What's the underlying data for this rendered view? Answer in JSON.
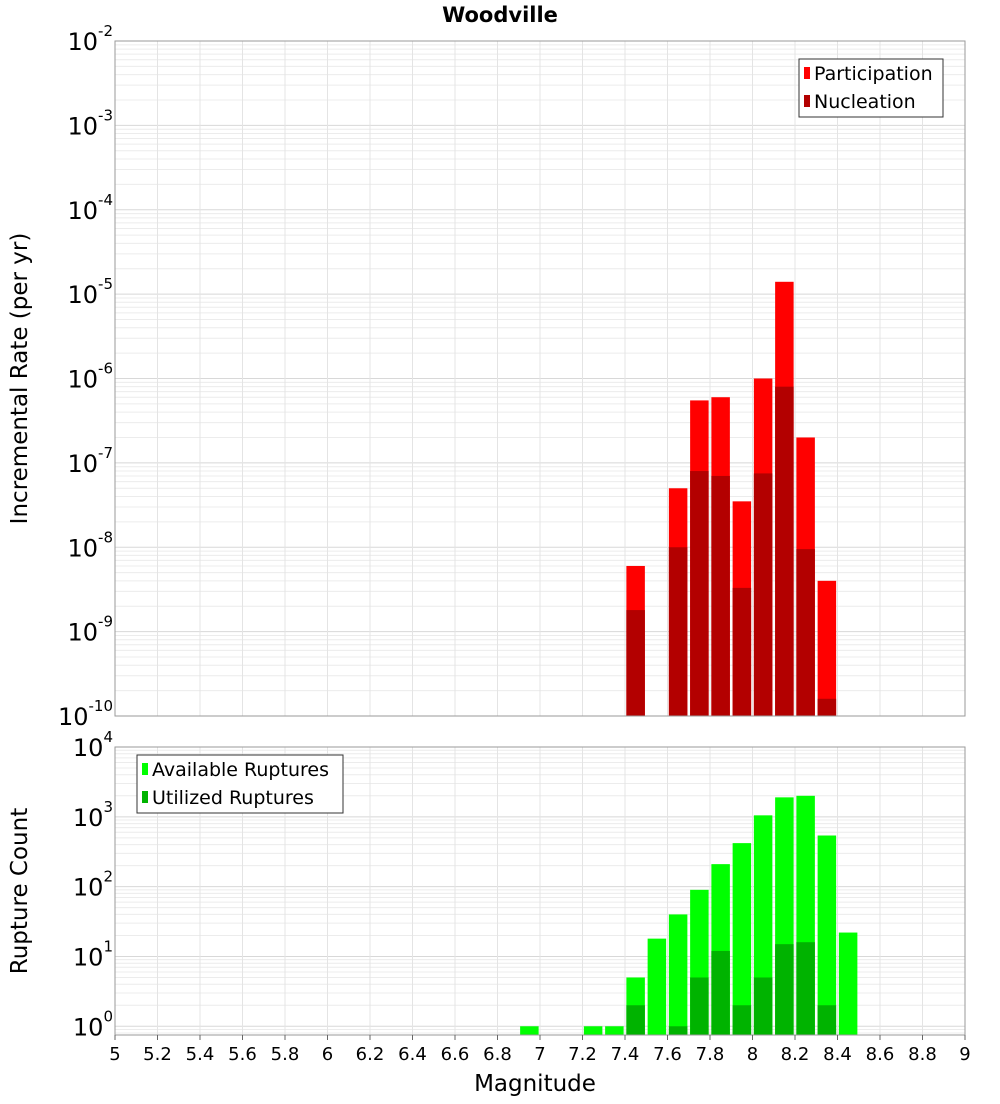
{
  "chart_data": [
    {
      "type": "bar",
      "title": "Woodville",
      "xlabel": "",
      "ylabel": "Incremental Rate (per yr)",
      "yscale": "log",
      "ylim": [
        1e-10,
        0.01
      ],
      "xlim": [
        5,
        9
      ],
      "y_tick_exponents": [
        "-10",
        "-9",
        "-8",
        "-7",
        "-6",
        "-5",
        "-4",
        "-3",
        "-2"
      ],
      "grid": true,
      "legend_position": "top-right",
      "x": [
        7.45,
        7.65,
        7.75,
        7.85,
        7.95,
        8.05,
        8.15,
        8.25,
        8.35
      ],
      "series": [
        {
          "name": "Participation",
          "color": "#ff0000",
          "values": [
            6e-09,
            5e-08,
            5.5e-07,
            6e-07,
            3.5e-08,
            1e-06,
            1.4e-05,
            2e-07,
            4e-09
          ]
        },
        {
          "name": "Nucleation",
          "color": "#b30000",
          "values": [
            1.8e-09,
            1e-08,
            8e-08,
            7e-08,
            3.3e-09,
            7.5e-08,
            8e-07,
            9.5e-09,
            1.6e-10
          ]
        }
      ]
    },
    {
      "type": "bar",
      "title": "",
      "xlabel": "Magnitude",
      "ylabel": "Rupture Count",
      "yscale": "log",
      "ylim": [
        0.75,
        10000
      ],
      "xlim": [
        5,
        9
      ],
      "y_tick_exponents": [
        "0",
        "1",
        "2",
        "3",
        "4"
      ],
      "x_ticks": [
        "5",
        "5.2",
        "5.4",
        "5.6",
        "5.8",
        "6",
        "6.2",
        "6.4",
        "6.6",
        "6.8",
        "7",
        "7.2",
        "7.4",
        "7.6",
        "7.8",
        "8",
        "8.2",
        "8.4",
        "8.6",
        "8.8",
        "9"
      ],
      "grid": true,
      "legend_position": "top-left",
      "x": [
        6.95,
        7.25,
        7.35,
        7.45,
        7.55,
        7.65,
        7.75,
        7.85,
        7.95,
        8.05,
        8.15,
        8.25,
        8.35,
        8.45
      ],
      "series": [
        {
          "name": "Available Ruptures",
          "color": "#00ff00",
          "values": [
            1,
            1,
            1,
            5,
            18,
            40,
            90,
            210,
            420,
            1050,
            1900,
            2000,
            540,
            22
          ]
        },
        {
          "name": "Utilized Ruptures",
          "color": "#00b300",
          "values": [
            0,
            0,
            0,
            2,
            0,
            1,
            5,
            12,
            2,
            5,
            15,
            16,
            2,
            0
          ]
        }
      ]
    }
  ]
}
